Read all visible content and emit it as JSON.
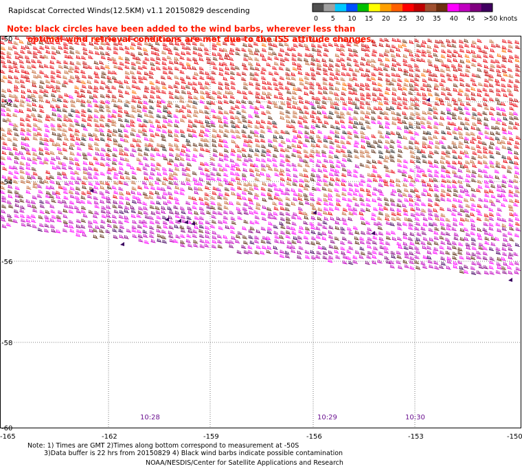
{
  "title": "Rapidscat Corrected Winds(12.5KM) v1.1 20150829 descending",
  "note": {
    "line1": "Note: black circles have been added to the wind barbs, wherever less than",
    "line2": "optimal wind retrieval conditions are met due to the ISS attitude changes."
  },
  "legend": {
    "labels": [
      "0",
      "5",
      "10",
      "15",
      "20",
      "25",
      "30",
      "35",
      "40",
      "45",
      ">50 knots"
    ],
    "colors": [
      "#505050",
      "#a0a0a0",
      "#00c8ff",
      "#0050ff",
      "#00c000",
      "#ffff00",
      "#ffa000",
      "#ff6000",
      "#ff0000",
      "#c00000",
      "#a05030",
      "#6e3010",
      "#ff00ff",
      "#c000c0",
      "#800080",
      "#400060"
    ]
  },
  "axes": {
    "lat_labels": [
      "-50",
      "-52",
      "-54",
      "-56",
      "-58",
      "-60"
    ],
    "lon_labels": [
      "-165",
      "-162",
      "-159",
      "-156",
      "-153",
      "-150"
    ]
  },
  "times": [
    "10:28",
    "10:29",
    "10:30"
  ],
  "footer": {
    "line1": "Note: 1) Times are GMT 2)Times along bottom correspond to measurement at -50S",
    "line2": "3)Data buffer is 22 hrs from 20150829 4) Black wind barbs indicate possible contamination",
    "line3": "NOAA/NESDIS/Center for Satellite Applications and Research"
  }
}
